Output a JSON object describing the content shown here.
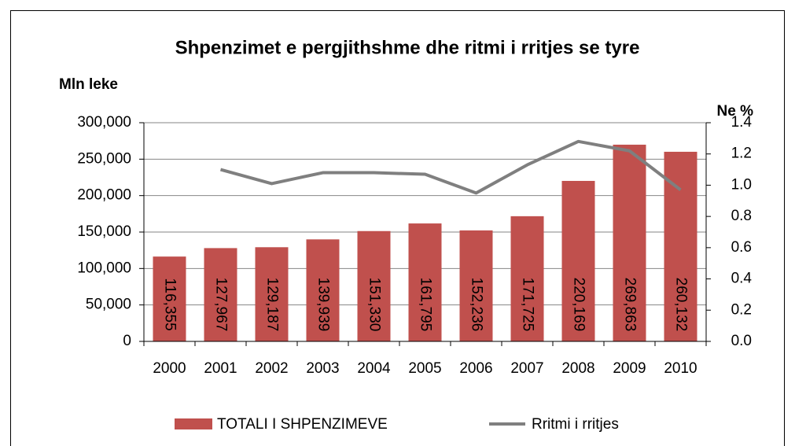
{
  "chart_data": {
    "type": "bar",
    "title": "Shpenzimet e pergjithshme dhe ritmi i rritjes se tyre",
    "y_label": "Mln leke",
    "y2_label": "Ne %",
    "categories": [
      "2000",
      "2001",
      "2002",
      "2003",
      "2004",
      "2005",
      "2006",
      "2007",
      "2008",
      "2009",
      "2010"
    ],
    "series": [
      {
        "name": "TOTALI I SHPENZIMEVE",
        "type": "bar",
        "color": "#c0504d",
        "values": [
          116355,
          127967,
          129187,
          139939,
          151330,
          161795,
          152236,
          171725,
          220169,
          269863,
          260132
        ],
        "value_labels": [
          "116,355",
          "127,967",
          "129,187",
          "139,939",
          "151,330",
          "161,795",
          "152,236",
          "171,725",
          "220,169",
          "269,863",
          "260,132"
        ]
      },
      {
        "name": "Rritmi i rritjes",
        "type": "line",
        "color": "#7f7f7f",
        "axis": "y2",
        "values": [
          null,
          1.1,
          1.01,
          1.08,
          1.08,
          1.07,
          0.95,
          1.13,
          1.28,
          1.22,
          0.97
        ]
      }
    ],
    "ylim": [
      0,
      300000
    ],
    "yticks": [
      0,
      {
        "value": 50000,
        "label": "50,000"
      },
      {
        "value": 100000,
        "label": "100,000"
      },
      {
        "value": 150000,
        "label": "150,000"
      },
      {
        "value": 200000,
        "label": "200,000"
      },
      {
        "value": 250000,
        "label": "250,000"
      },
      {
        "value": 300000,
        "label": "300,000"
      }
    ],
    "y2lim": [
      0,
      1.4
    ],
    "y2ticks": [
      {
        "value": 0,
        "label": "0.0"
      },
      0.2,
      0.4,
      0.6,
      0.8,
      {
        "value": 1,
        "label": "1.0"
      },
      1.2,
      1.4
    ],
    "grid": true,
    "legend": "bottom"
  }
}
